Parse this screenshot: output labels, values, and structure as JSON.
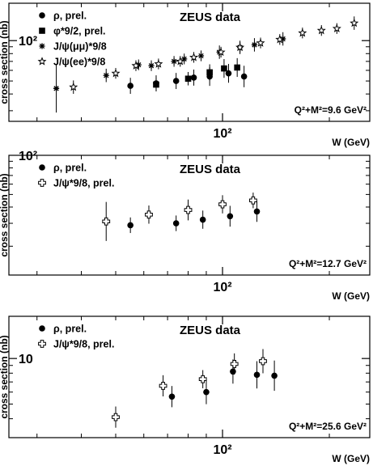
{
  "chart_data": [
    {
      "type": "scatter",
      "title": "ZEUS data",
      "ylabel": "cross section (nb)",
      "xlabel": "W (GeV)",
      "xscale": "log",
      "yscale": "log",
      "xlim": [
        25,
        260
      ],
      "ylim": [
        25,
        190
      ],
      "xticks": [
        {
          "value": 100,
          "label": "10²"
        }
      ],
      "yticks": [
        {
          "value": 100,
          "label": "10²"
        }
      ],
      "annotation": "Q²+M²=9.6 GeV²",
      "legend_position": "top-left",
      "series": [
        {
          "name": "ρ, prel.",
          "marker": "dot",
          "x": [
            55,
            65,
            74,
            83,
            92,
            104,
            115
          ],
          "y": [
            46,
            48,
            50,
            53,
            54,
            57,
            54
          ],
          "err": [
            0.06,
            0.06,
            0.06,
            0.06,
            0.07,
            0.07,
            0.08
          ]
        },
        {
          "name": "φ*9/2, prel.",
          "marker": "square",
          "x": [
            65,
            80,
            92,
            101,
            110
          ],
          "y": [
            47,
            52,
            58,
            62,
            63
          ],
          "err": [
            0.05,
            0.05,
            0.06,
            0.07,
            0.07
          ]
        },
        {
          "name": "J/ψ(μμ)*9/8",
          "marker": "asterisk",
          "x": [
            34,
            47,
            58,
            63,
            73,
            78,
            87,
            98,
            112,
            123,
            148
          ],
          "y": [
            44,
            55,
            66,
            65,
            70,
            73,
            77,
            82,
            89,
            93,
            103
          ],
          "err": [
            0.18,
            0.05,
            0.04,
            0.04,
            0.04,
            0.04,
            0.04,
            0.05,
            0.05,
            0.05,
            0.05
          ]
        },
        {
          "name": "J/ψ(ee)*9/8",
          "marker": "star",
          "x": [
            38,
            50,
            57,
            66,
            76,
            83,
            99,
            112,
            128,
            145,
            168,
            190,
            210,
            235
          ],
          "y": [
            45,
            57,
            65,
            67,
            70,
            75,
            82,
            89,
            96,
            102,
            114,
            119,
            123,
            135
          ],
          "err": [
            0.05,
            0.04,
            0.04,
            0.04,
            0.04,
            0.04,
            0.04,
            0.04,
            0.04,
            0.04,
            0.04,
            0.04,
            0.04,
            0.05
          ]
        }
      ]
    },
    {
      "type": "scatter",
      "title": "ZEUS data",
      "ylabel": "cross section (nb)",
      "xlabel": "W (GeV)",
      "xscale": "log",
      "yscale": "log",
      "xlim": [
        25,
        260
      ],
      "ylim": [
        12,
        100
      ],
      "xticks": [
        {
          "value": 100,
          "label": "10²"
        }
      ],
      "yticks": [
        {
          "value": 100,
          "label": "10²"
        }
      ],
      "annotation": "Q²+M²=12.7 GeV²",
      "legend_position": "top-left",
      "series": [
        {
          "name": "ρ, prel.",
          "marker": "dot",
          "x": [
            55,
            74,
            88,
            105,
            125
          ],
          "y": [
            29,
            30,
            32,
            34,
            37
          ],
          "err": [
            0.06,
            0.06,
            0.07,
            0.08,
            0.08
          ]
        },
        {
          "name": "J/ψ*9/8, prel.",
          "marker": "cross",
          "x": [
            47,
            62,
            80,
            100,
            122
          ],
          "y": [
            31,
            35,
            38,
            42,
            45
          ],
          "err": [
            0.15,
            0.07,
            0.08,
            0.07,
            0.06
          ]
        }
      ]
    },
    {
      "type": "scatter",
      "title": "ZEUS data",
      "ylabel": "cross section (nb)",
      "xlabel": "W (GeV)",
      "xscale": "log",
      "yscale": "log",
      "xlim": [
        25,
        260
      ],
      "ylim": [
        3,
        19
      ],
      "xticks": [
        {
          "value": 100,
          "label": "10²"
        }
      ],
      "yticks": [
        {
          "value": 10,
          "label": "10"
        }
      ],
      "annotation": "Q²+M²=25.6 GeV²",
      "legend_position": "top-left",
      "series": [
        {
          "name": "ρ, prel.",
          "marker": "dot",
          "x": [
            72,
            90,
            107,
            125,
            140
          ],
          "y": [
            5.6,
            6.0,
            8.2,
            7.8,
            7.7
          ],
          "err": [
            0.07,
            0.08,
            0.08,
            0.09,
            0.1
          ]
        },
        {
          "name": "J/ψ*9/8, prel.",
          "marker": "cross",
          "x": [
            50,
            68,
            88,
            108,
            130
          ],
          "y": [
            4.1,
            6.6,
            7.3,
            9.2,
            9.6
          ],
          "err": [
            0.07,
            0.07,
            0.06,
            0.07,
            0.08
          ]
        }
      ]
    }
  ]
}
